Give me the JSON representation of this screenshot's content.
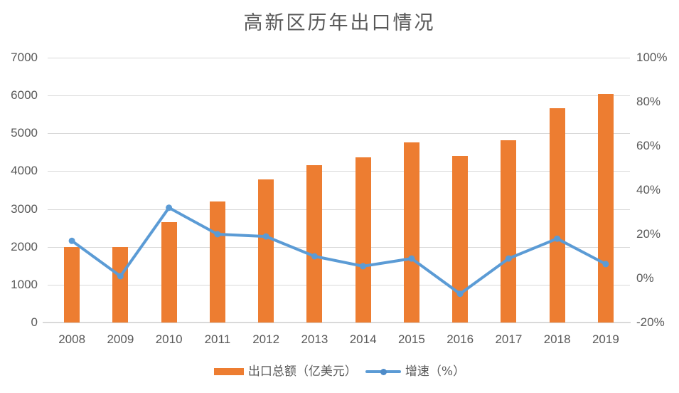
{
  "chart_data": {
    "type": "combo-bar-line",
    "title": "高新区历年出口情况",
    "categories": [
      "2008",
      "2009",
      "2010",
      "2011",
      "2012",
      "2013",
      "2014",
      "2015",
      "2016",
      "2017",
      "2018",
      "2019"
    ],
    "series": [
      {
        "name": "出口总额（亿美元）",
        "type": "bar",
        "axis": "left",
        "color": "#ED7D31",
        "values": [
          2000,
          2000,
          2650,
          3190,
          3780,
          4150,
          4370,
          4760,
          4410,
          4810,
          5670,
          6040
        ]
      },
      {
        "name": "增速（%）",
        "type": "line",
        "axis": "right",
        "color": "#5B9BD5",
        "values": [
          17,
          1,
          32,
          20,
          19,
          10,
          5.5,
          9,
          -7,
          9,
          18,
          6.5
        ]
      }
    ],
    "left_axis": {
      "min": 0,
      "max": 7000,
      "step": 1000,
      "tick_labels": [
        "0",
        "1000",
        "2000",
        "3000",
        "4000",
        "5000",
        "6000",
        "7000"
      ]
    },
    "right_axis": {
      "min": -20,
      "max": 100,
      "step": 20,
      "tick_labels": [
        "-20%",
        "0%",
        "20%",
        "40%",
        "60%",
        "80%",
        "100%"
      ]
    },
    "grid": true,
    "legend_position": "bottom"
  },
  "colors": {
    "bar": "#ED7D31",
    "line": "#5B9BD5",
    "marker": "#5B9BD5",
    "legend_dot": "#4E8BC8",
    "grid": "#D9D9D9",
    "text": "#595959",
    "background": "#FFFFFF"
  }
}
